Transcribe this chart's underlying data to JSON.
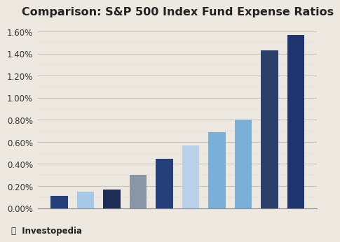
{
  "title": "Comparison: S&P 500 Index Fund Expense Ratios",
  "values": [
    0.0011,
    0.0015,
    0.0017,
    0.003,
    0.0045,
    0.0057,
    0.0069,
    0.008,
    0.0143,
    0.0157
  ],
  "bar_colors": [
    "#243f7a",
    "#a8c8e8",
    "#1c2e55",
    "#8a95a5",
    "#243f7a",
    "#b8d0e8",
    "#7ab0d8",
    "#7ab0d8",
    "#2a3f6a",
    "#1e3570"
  ],
  "ylim_max": 0.0168,
  "yticks": [
    0.0,
    0.002,
    0.004,
    0.006,
    0.008,
    0.01,
    0.012,
    0.014,
    0.016
  ],
  "ytick_labels": [
    "0.00%",
    "0.20%",
    "0.40%",
    "0.60%",
    "0.80%",
    "1.00%",
    "1.20%",
    "1.40%",
    "1.60%"
  ],
  "background_color": "#ede8e0",
  "plot_bg_color": "#ede8e0",
  "grid_color": "#c8c0b8",
  "title_fontsize": 11.5,
  "watermark": "Investopedia",
  "bar_width": 0.65
}
